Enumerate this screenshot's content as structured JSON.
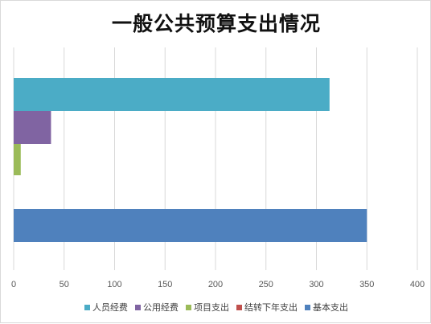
{
  "chart_data": {
    "type": "bar",
    "orientation": "horizontal",
    "title": "一般公共预算支出情况",
    "xlabel": "",
    "ylabel": "",
    "xlim": [
      0,
      400
    ],
    "x_ticks": [
      "0",
      "50",
      "100",
      "150",
      "200",
      "250",
      "300",
      "350",
      "400"
    ],
    "grid": true,
    "legend_position": "bottom",
    "groups": [
      {
        "bars": [
          {
            "series": "人员经费",
            "value": 313
          },
          {
            "series": "公用经费",
            "value": 37
          },
          {
            "series": "项目支出",
            "value": 7
          }
        ]
      },
      {
        "bars": [
          {
            "series": "基本支出",
            "value": 350
          }
        ]
      }
    ],
    "series": [
      {
        "name": "人员经费",
        "color": "#4bacc6"
      },
      {
        "name": "公用经费",
        "color": "#8064a2"
      },
      {
        "name": "项目支出",
        "color": "#9bbb59"
      },
      {
        "name": "结转下年支出",
        "color": "#c0504d"
      },
      {
        "name": "基本支出",
        "color": "#4f81bd"
      }
    ]
  }
}
